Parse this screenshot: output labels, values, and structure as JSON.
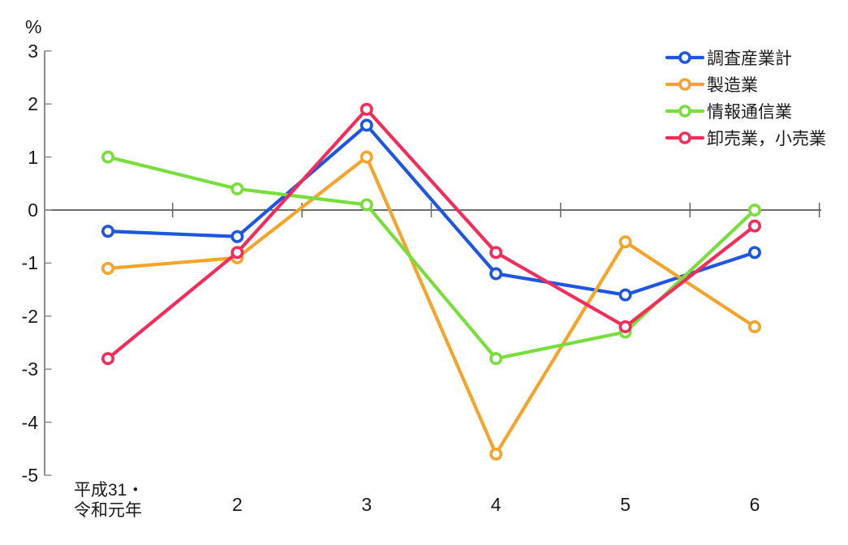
{
  "chart_data": {
    "type": "line",
    "title": "",
    "xlabel": "",
    "ylabel": "%",
    "ylim": [
      -5,
      3
    ],
    "ytick_step": 1,
    "grid": false,
    "legend_position": "top-right",
    "categories": [
      "平成31・令和元年",
      "2",
      "3",
      "4",
      "5",
      "6"
    ],
    "x_first_label_lines": [
      "平成31・",
      "令和元年"
    ],
    "series": [
      {
        "name": "調査産業計",
        "color": "#1e56e0",
        "values": [
          -0.4,
          -0.5,
          1.6,
          -1.2,
          -1.6,
          -0.8
        ]
      },
      {
        "name": "製造業",
        "color": "#f5a42a",
        "values": [
          -1.1,
          -0.9,
          1.0,
          -4.6,
          -0.6,
          -2.2
        ]
      },
      {
        "name": "情報通信業",
        "color": "#77de3c",
        "values": [
          1.0,
          0.4,
          0.1,
          -2.8,
          -2.3,
          0.0
        ]
      },
      {
        "name": "卸売業，小売業",
        "color": "#f22c5b",
        "values": [
          -2.8,
          -0.8,
          1.9,
          -0.8,
          -2.2,
          -0.3
        ]
      }
    ],
    "axis_color": "#666666",
    "zero_line_color": "#3c3c3c",
    "tick_color": "#8c8c8c",
    "marker_fill": "#ffffff"
  }
}
